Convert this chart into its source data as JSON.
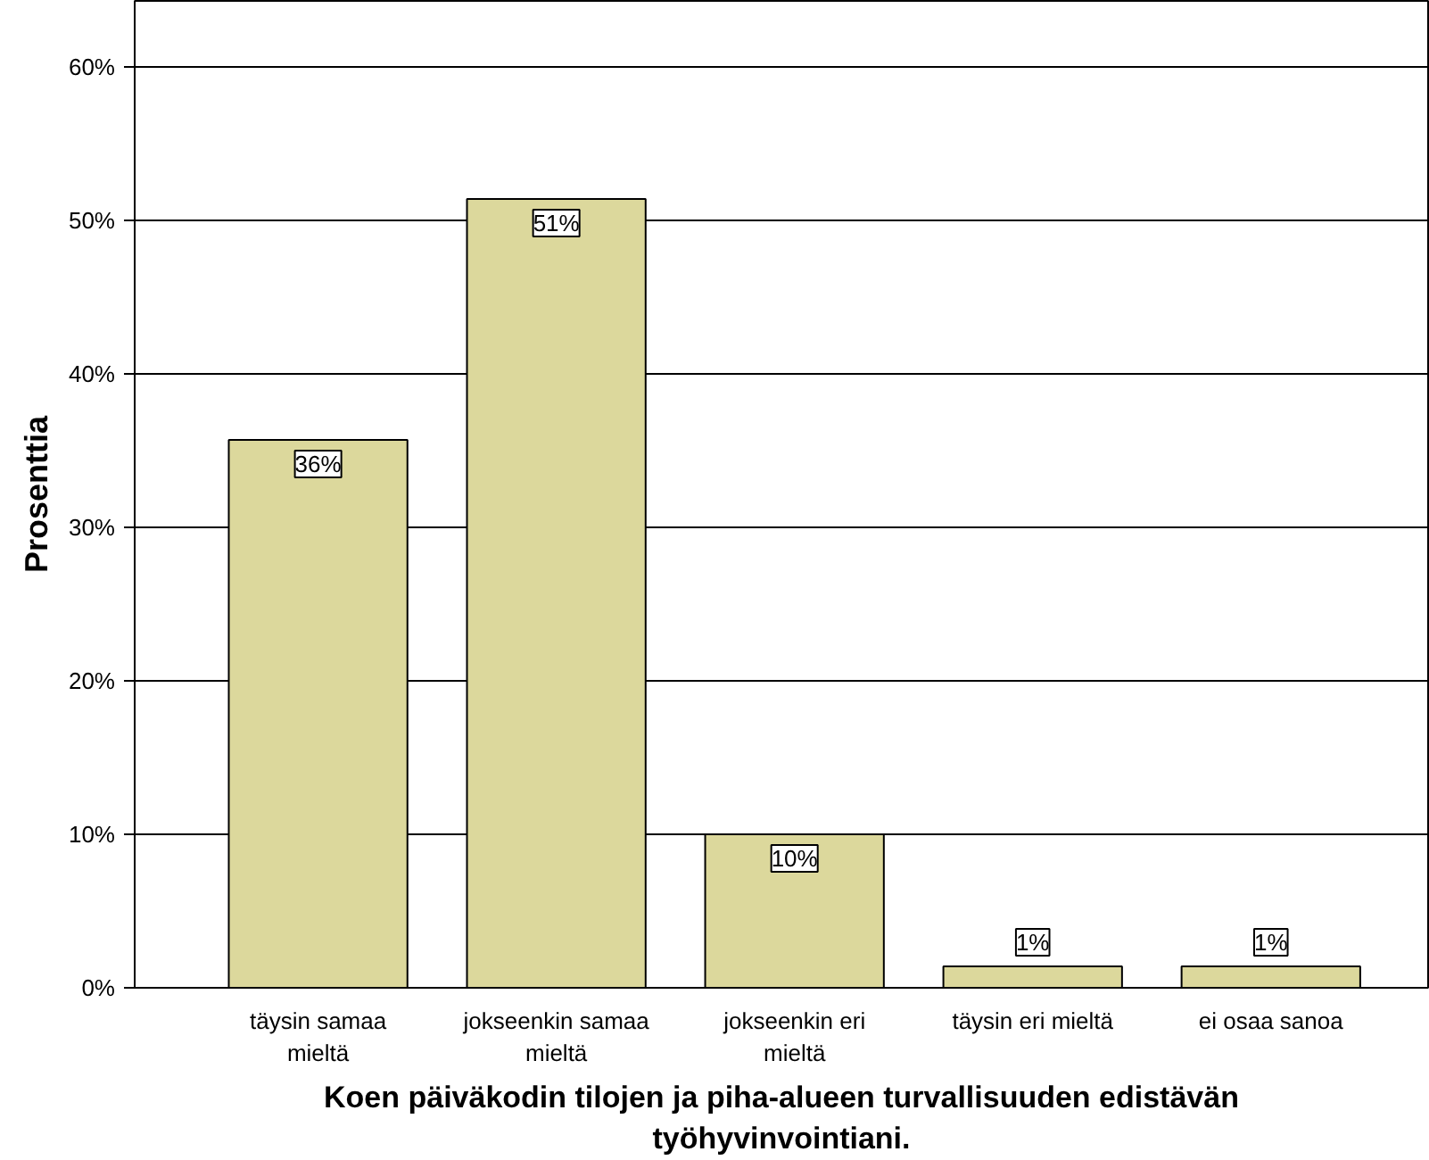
{
  "chart_data": {
    "type": "bar",
    "xlabel": "Koen päiväkodin tilojen ja piha-alueen turvallisuuden edistävän työhyvinvointiani.",
    "ylabel": "Prosenttia",
    "categories": [
      "täysin samaa mieltä",
      "jokseenkin samaa mieltä",
      "jokseenkin eri mieltä",
      "täysin eri mieltä",
      "ei osaa sanoa"
    ],
    "values": [
      35.7,
      51.4,
      10.0,
      1.4,
      1.4
    ],
    "value_labels": [
      "36%",
      "51%",
      "10%",
      "1%",
      "1%"
    ],
    "color": "#dcd89c",
    "ylim": [
      0,
      64.3
    ],
    "yticks": [
      {
        "value": 0,
        "label": "0%"
      },
      {
        "value": 10,
        "label": "10%"
      },
      {
        "value": 20,
        "label": "20%"
      },
      {
        "value": 30,
        "label": "30%"
      },
      {
        "value": 40,
        "label": "40%"
      },
      {
        "value": 50,
        "label": "50%"
      },
      {
        "value": 60,
        "label": "60%"
      }
    ],
    "grid": "y"
  }
}
